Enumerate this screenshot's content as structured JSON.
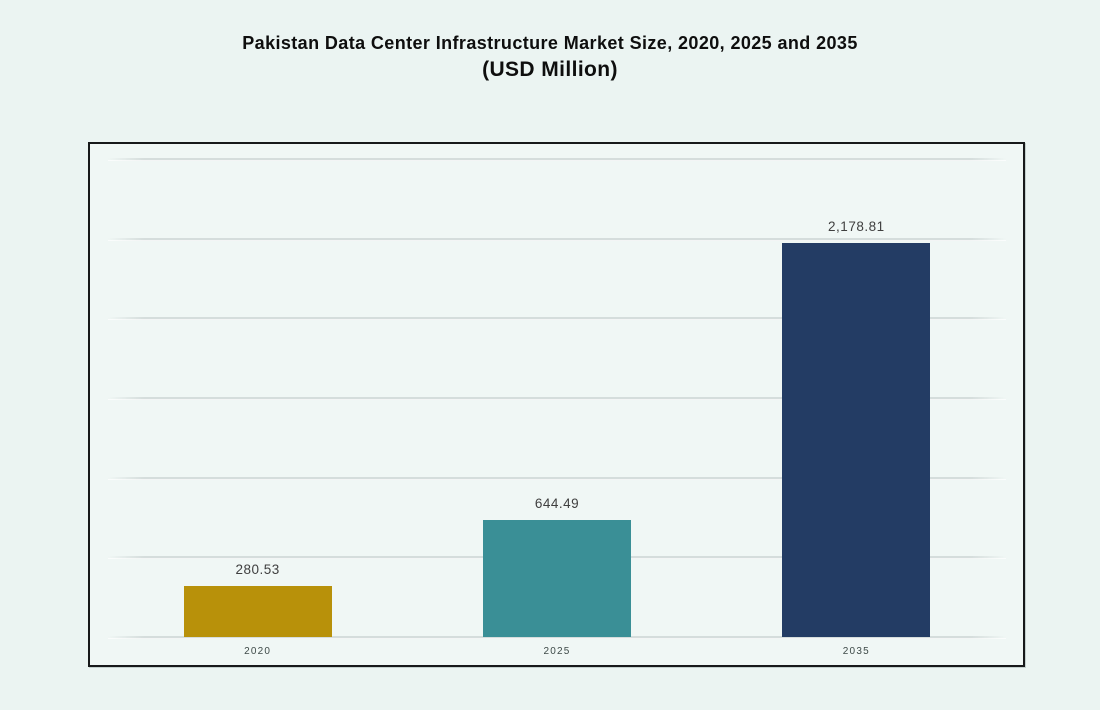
{
  "chart_data": {
    "type": "bar",
    "title": "Pakistan Data Center Infrastructure Market Size, 2020, 2025 and 2035",
    "subtitle": "(USD Million)",
    "categories": [
      "2020",
      "2025",
      "2035"
    ],
    "values": [
      280.53,
      644.49,
      2178.81
    ],
    "value_labels": [
      "280.53",
      "644.49",
      "2,178.81"
    ],
    "series_name": "Market Size (USD Million)",
    "xlabel": "",
    "ylabel": "",
    "ylim": [
      0,
      2640
    ],
    "gridline_count": 7,
    "grid": true,
    "legend": false,
    "bar_colors": [
      "#b8910a",
      "#3a8f96",
      "#233c64"
    ]
  },
  "style": {
    "page_bg": "#ebf4f2",
    "panel_bg": "#f0f7f5",
    "panel_border": "#17191a",
    "grid_color": "#d5dddc",
    "title_color": "#0e0e0e",
    "value_label_color": "#3f3f3f",
    "axis_label_color": "#3e4a48"
  }
}
